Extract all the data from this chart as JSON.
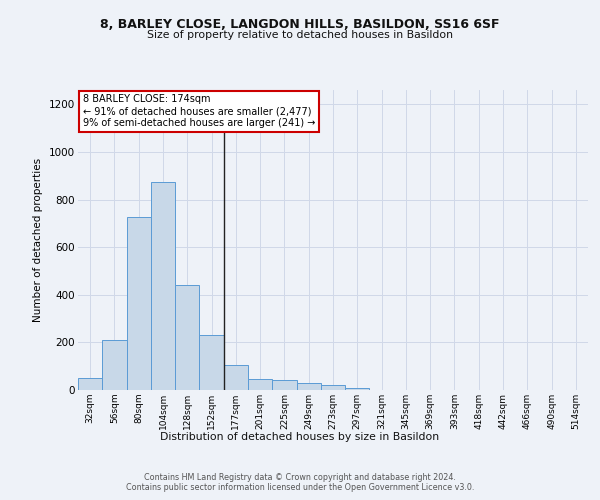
{
  "title1": "8, BARLEY CLOSE, LANGDON HILLS, BASILDON, SS16 6SF",
  "title2": "Size of property relative to detached houses in Basildon",
  "xlabel": "Distribution of detached houses by size in Basildon",
  "ylabel": "Number of detached properties",
  "categories": [
    "32sqm",
    "56sqm",
    "80sqm",
    "104sqm",
    "128sqm",
    "152sqm",
    "177sqm",
    "201sqm",
    "225sqm",
    "249sqm",
    "273sqm",
    "297sqm",
    "321sqm",
    "345sqm",
    "369sqm",
    "393sqm",
    "418sqm",
    "442sqm",
    "466sqm",
    "490sqm",
    "514sqm"
  ],
  "values": [
    50,
    210,
    725,
    875,
    440,
    230,
    107,
    47,
    40,
    30,
    20,
    10,
    0,
    0,
    0,
    0,
    0,
    0,
    0,
    0,
    0
  ],
  "bar_color": "#c8d8e8",
  "bar_edge_color": "#5b9bd5",
  "annotation_line1": "8 BARLEY CLOSE: 174sqm",
  "annotation_line2": "← 91% of detached houses are smaller (2,477)",
  "annotation_line3": "9% of semi-detached houses are larger (241) →",
  "annotation_box_color": "#ffffff",
  "annotation_box_edge_color": "#cc0000",
  "vline_x": 5.5,
  "ylim": [
    0,
    1260
  ],
  "yticks": [
    0,
    200,
    400,
    600,
    800,
    1000,
    1200
  ],
  "footer1": "Contains HM Land Registry data © Crown copyright and database right 2024.",
  "footer2": "Contains public sector information licensed under the Open Government Licence v3.0.",
  "bg_color": "#eef2f8",
  "grid_color": "#d0d8e8"
}
